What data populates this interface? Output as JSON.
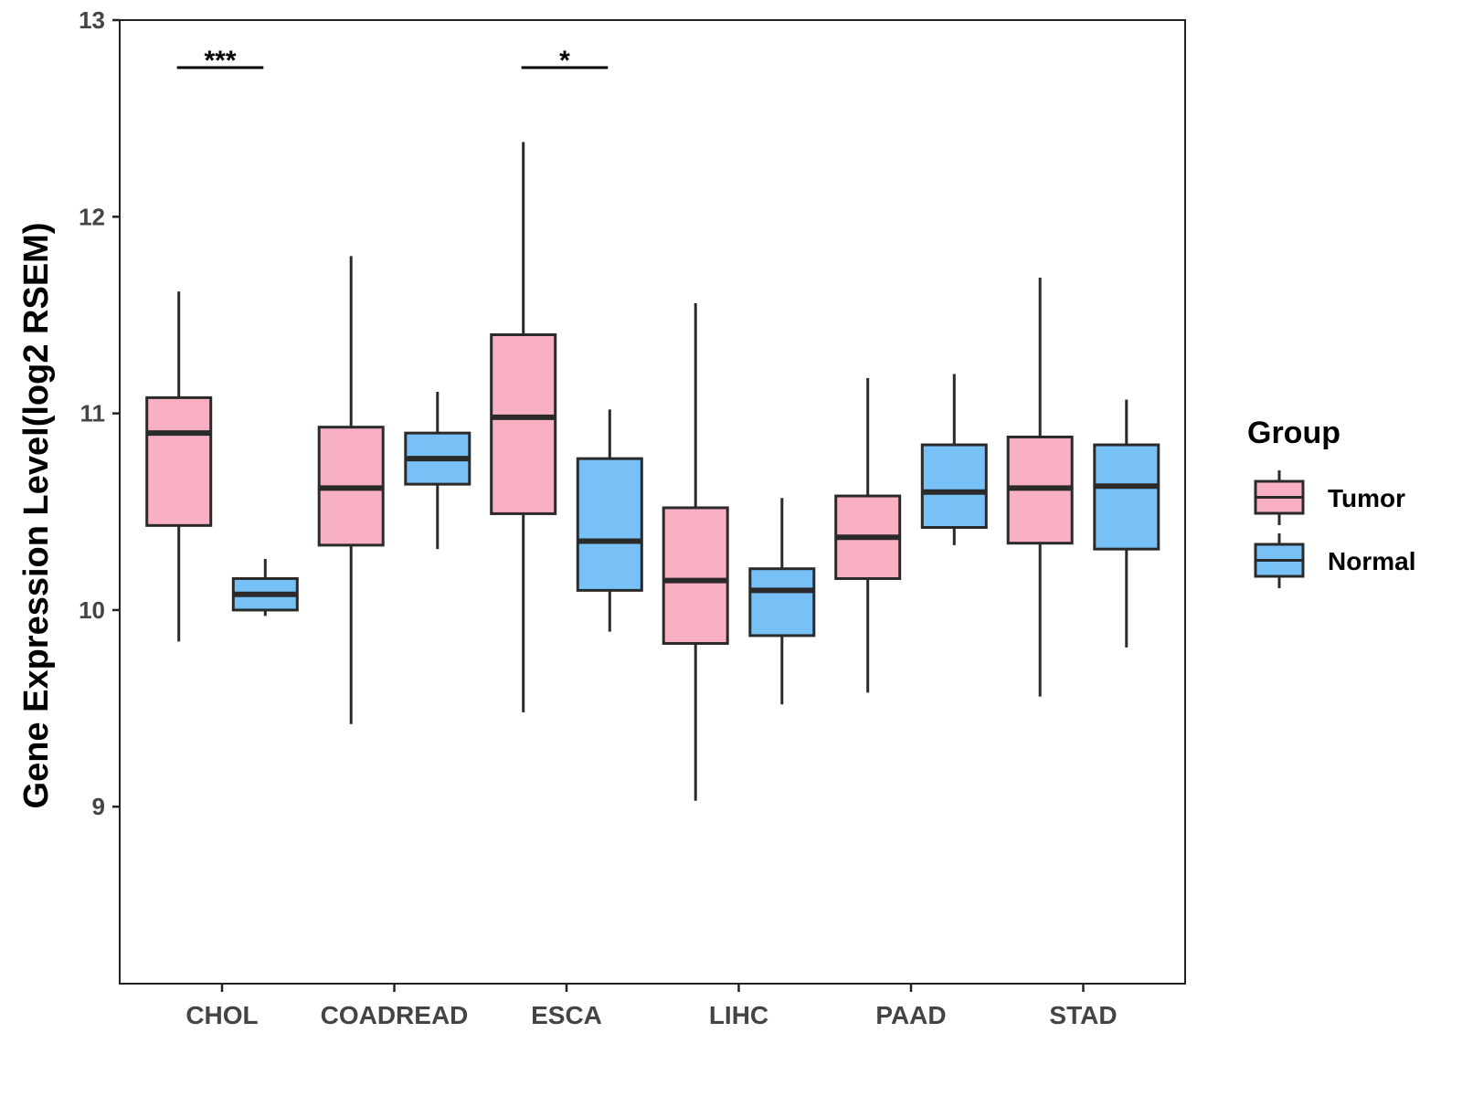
{
  "chart_data": {
    "type": "boxplot",
    "title": "",
    "xlabel": "",
    "ylabel": "Gene Expression Level(log2 RSEM)",
    "ylim": [
      8.1,
      13
    ],
    "yticks": [
      9,
      10,
      11,
      12,
      13
    ],
    "categories": [
      "CHOL",
      "COADREAD",
      "ESCA",
      "LIHC",
      "PAAD",
      "STAD"
    ],
    "legend": {
      "title": "Group",
      "position": "right",
      "items": [
        {
          "name": "Tumor",
          "color": "#F9B0C3"
        },
        {
          "name": "Normal",
          "color": "#77C1F7"
        }
      ]
    },
    "series": [
      {
        "name": "Tumor",
        "color": "#F9B0C3",
        "boxes": [
          {
            "category": "CHOL",
            "min": 9.84,
            "q1": 10.43,
            "median": 10.9,
            "q3": 11.08,
            "max": 11.62
          },
          {
            "category": "COADREAD",
            "min": 9.42,
            "q1": 10.33,
            "median": 10.62,
            "q3": 10.93,
            "max": 11.8
          },
          {
            "category": "ESCA",
            "min": 9.48,
            "q1": 10.49,
            "median": 10.98,
            "q3": 11.4,
            "max": 12.38
          },
          {
            "category": "LIHC",
            "min": 9.03,
            "q1": 9.83,
            "median": 10.15,
            "q3": 10.52,
            "max": 11.56
          },
          {
            "category": "PAAD",
            "min": 9.58,
            "q1": 10.16,
            "median": 10.37,
            "q3": 10.58,
            "max": 11.18
          },
          {
            "category": "STAD",
            "min": 9.56,
            "q1": 10.34,
            "median": 10.62,
            "q3": 10.88,
            "max": 11.69
          }
        ]
      },
      {
        "name": "Normal",
        "color": "#77C1F7",
        "boxes": [
          {
            "category": "CHOL",
            "min": 9.97,
            "q1": 10.0,
            "median": 10.08,
            "q3": 10.16,
            "max": 10.26
          },
          {
            "category": "COADREAD",
            "min": 10.31,
            "q1": 10.64,
            "median": 10.77,
            "q3": 10.9,
            "max": 11.11
          },
          {
            "category": "ESCA",
            "min": 9.89,
            "q1": 10.1,
            "median": 10.35,
            "q3": 10.77,
            "max": 11.02
          },
          {
            "category": "LIHC",
            "min": 9.52,
            "q1": 9.87,
            "median": 10.1,
            "q3": 10.21,
            "max": 10.57
          },
          {
            "category": "PAAD",
            "min": 10.33,
            "q1": 10.42,
            "median": 10.6,
            "q3": 10.84,
            "max": 11.2
          },
          {
            "category": "STAD",
            "min": 9.81,
            "q1": 10.31,
            "median": 10.63,
            "q3": 10.84,
            "max": 11.07
          }
        ]
      }
    ],
    "annotations": [
      {
        "category": "CHOL",
        "label": "***"
      },
      {
        "category": "ESCA",
        "label": "*"
      }
    ]
  }
}
